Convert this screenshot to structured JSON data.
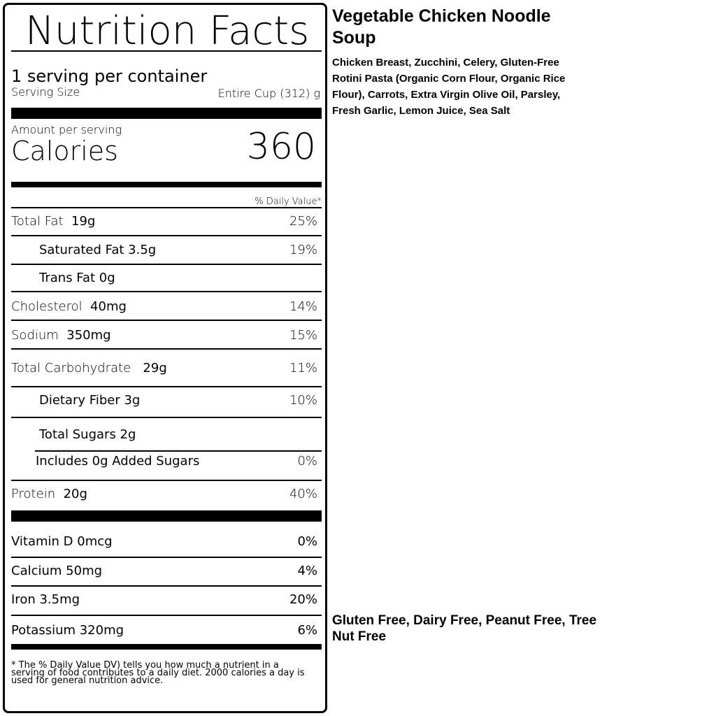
{
  "label": {
    "title": "Nutrition Facts",
    "servings": "1 serving per container",
    "serving_size_label": "Serving Size",
    "serving_size_value": "Entire Cup  (312) g",
    "amount_per_serving": "Amount per serving",
    "calories_label": "Calories",
    "calories_value": "360",
    "dv_header": "% Daily Value*",
    "nutrients": [
      {
        "name": "Total Fat",
        "amount": "19g",
        "dv": "25%"
      },
      {
        "name": "Saturated Fat 3.5g",
        "amount": "",
        "dv": "19%"
      },
      {
        "name": "Trans Fat 0g",
        "amount": "",
        "dv": ""
      },
      {
        "name": "Cholesterol",
        "amount": "40mg",
        "dv": "14%"
      },
      {
        "name": "Sodium",
        "amount": "350mg",
        "dv": "15%"
      },
      {
        "name": "Total Carbohydrate",
        "amount": "29g",
        "dv": "11%"
      },
      {
        "name": "Dietary Fiber 3g",
        "amount": "",
        "dv": "10%"
      },
      {
        "name": "Total Sugars 2g",
        "amount": "",
        "dv": ""
      },
      {
        "name": "Includes 0g Added Sugars",
        "amount": "",
        "dv": "0%"
      },
      {
        "name": "Protein",
        "amount": "20g",
        "dv": "40%"
      }
    ],
    "vitamins": [
      {
        "name": "Vitamin D 0mcg",
        "dv": "0%"
      },
      {
        "name": "Calcium 50mg",
        "dv": "4%"
      },
      {
        "name": "Iron 3.5mg",
        "dv": "20%"
      },
      {
        "name": "Potassium 320mg",
        "dv": "6%"
      }
    ],
    "footnote": "* The % Daily Value  DV) tells you how much a nutrient in a serving of food contributes to a daily diet. 2000 calories a day is used for general nutrition advice."
  },
  "product": {
    "name": "Vegetable Chicken Noodle Soup",
    "ingredients": "Chicken Breast, Zucchini, Celery, Gluten-Free Rotini Pasta (Organic Corn Flour, Organic Rice Flour), Carrots, Extra Virgin Olive Oil, Parsley, Fresh Garlic, Lemon Juice, Sea Salt",
    "allergens": "Gluten Free, Dairy Free, Peanut Free, Tree Nut Free"
  }
}
